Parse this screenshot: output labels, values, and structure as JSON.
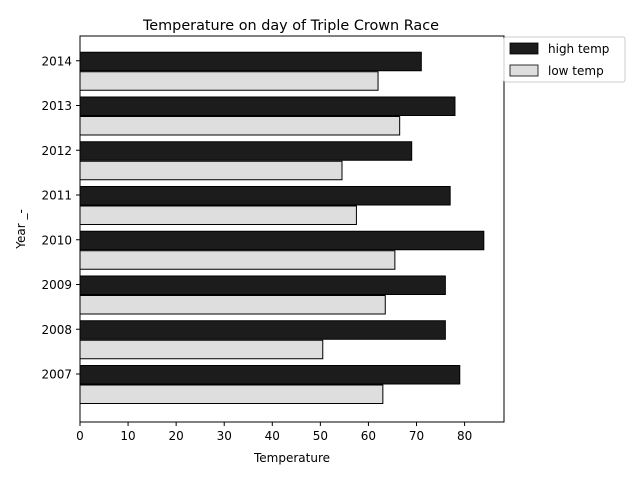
{
  "chart_data": {
    "type": "bar",
    "orientation": "horizontal",
    "title": "Temperature on day of Triple Crown Race",
    "xlabel": "Temperature",
    "ylabel": "Year _-",
    "categories": [
      "2007",
      "2008",
      "2009",
      "2010",
      "2011",
      "2012",
      "2013",
      "2014"
    ],
    "series": [
      {
        "name": "high temp",
        "values": [
          79,
          76,
          76,
          84,
          77,
          69,
          78,
          71
        ],
        "color": "#1c1c1c"
      },
      {
        "name": "low temp",
        "values": [
          63,
          50.5,
          63.5,
          65.5,
          57.5,
          54.5,
          66.5,
          62
        ],
        "color": "#dedede"
      }
    ],
    "xlim": [
      0,
      88.2
    ],
    "xticks": [
      "0",
      "10",
      "20",
      "30",
      "40",
      "50",
      "60",
      "70",
      "80"
    ],
    "grid": false,
    "legend_position": "upper-right-outside"
  }
}
